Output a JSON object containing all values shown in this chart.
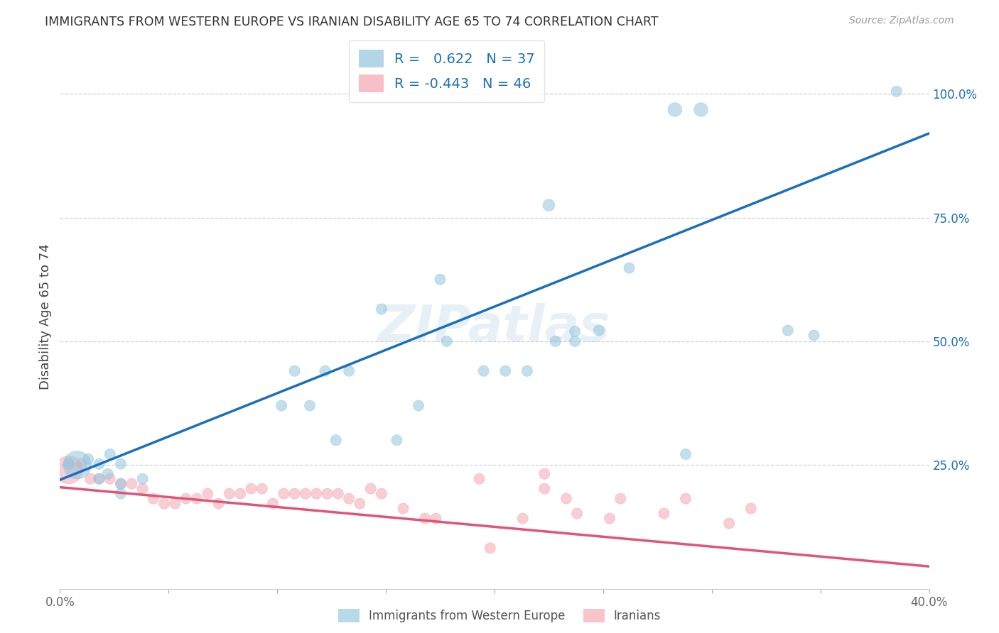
{
  "title": "IMMIGRANTS FROM WESTERN EUROPE VS IRANIAN DISABILITY AGE 65 TO 74 CORRELATION CHART",
  "source": "Source: ZipAtlas.com",
  "ylabel": "Disability Age 65 to 74",
  "xlim": [
    0.0,
    0.4
  ],
  "ylim": [
    0.0,
    1.1
  ],
  "x_ticks": [
    0.0,
    0.05,
    0.1,
    0.15,
    0.2,
    0.25,
    0.3,
    0.35,
    0.4
  ],
  "x_tick_labels": [
    "0.0%",
    "",
    "",
    "",
    "",
    "",
    "",
    "",
    "40.0%"
  ],
  "y_ticks_right": [
    0.0,
    0.25,
    0.5,
    0.75,
    1.0
  ],
  "y_tick_labels_right": [
    "",
    "25.0%",
    "50.0%",
    "75.0%",
    "100.0%"
  ],
  "R_blue": 0.622,
  "N_blue": 37,
  "R_pink": -0.443,
  "N_pink": 46,
  "blue_color": "#92c5de",
  "pink_color": "#f4a5b0",
  "line_blue": "#1a6fbd",
  "line_pink": "#e05577",
  "legend_text_color": "#1a6fbd",
  "blue_line_x": [
    0.0,
    0.4
  ],
  "blue_line_y": [
    0.22,
    0.92
  ],
  "pink_line_x": [
    0.0,
    0.4
  ],
  "pink_line_y": [
    0.205,
    0.045
  ],
  "blue_scatter_x": [
    0.283,
    0.295,
    0.175,
    0.225,
    0.148,
    0.195,
    0.205,
    0.108,
    0.115,
    0.122,
    0.102,
    0.127,
    0.155,
    0.165,
    0.133,
    0.178,
    0.215,
    0.228,
    0.237,
    0.008,
    0.013,
    0.018,
    0.022,
    0.028,
    0.018,
    0.023,
    0.028,
    0.038,
    0.028,
    0.237,
    0.248,
    0.335,
    0.347,
    0.288,
    0.004,
    0.385,
    0.262
  ],
  "blue_scatter_y": [
    0.968,
    0.968,
    0.625,
    0.775,
    0.565,
    0.44,
    0.44,
    0.44,
    0.37,
    0.44,
    0.37,
    0.3,
    0.3,
    0.37,
    0.44,
    0.5,
    0.44,
    0.5,
    0.52,
    0.25,
    0.262,
    0.252,
    0.232,
    0.252,
    0.222,
    0.272,
    0.212,
    0.222,
    0.192,
    0.5,
    0.522,
    0.522,
    0.512,
    0.272,
    0.252,
    1.005,
    0.648
  ],
  "blue_scatter_size": [
    200,
    200,
    120,
    150,
    120,
    120,
    120,
    120,
    120,
    120,
    120,
    120,
    120,
    120,
    120,
    120,
    120,
    120,
    120,
    800,
    120,
    120,
    120,
    120,
    120,
    120,
    120,
    120,
    120,
    120,
    120,
    120,
    120,
    120,
    120,
    120,
    120
  ],
  "pink_scatter_x": [
    0.004,
    0.01,
    0.014,
    0.018,
    0.023,
    0.028,
    0.033,
    0.038,
    0.043,
    0.048,
    0.053,
    0.058,
    0.063,
    0.068,
    0.073,
    0.078,
    0.083,
    0.088,
    0.093,
    0.098,
    0.103,
    0.108,
    0.113,
    0.118,
    0.123,
    0.128,
    0.133,
    0.138,
    0.143,
    0.148,
    0.193,
    0.223,
    0.233,
    0.238,
    0.278,
    0.288,
    0.318,
    0.223,
    0.198,
    0.173,
    0.158,
    0.168,
    0.213,
    0.253,
    0.258,
    0.308
  ],
  "pink_scatter_y": [
    0.24,
    0.252,
    0.222,
    0.222,
    0.222,
    0.212,
    0.212,
    0.202,
    0.182,
    0.172,
    0.172,
    0.182,
    0.182,
    0.192,
    0.172,
    0.192,
    0.192,
    0.202,
    0.202,
    0.172,
    0.192,
    0.192,
    0.192,
    0.192,
    0.192,
    0.192,
    0.182,
    0.172,
    0.202,
    0.192,
    0.222,
    0.202,
    0.182,
    0.152,
    0.152,
    0.182,
    0.162,
    0.232,
    0.082,
    0.142,
    0.162,
    0.142,
    0.142,
    0.142,
    0.182,
    0.132
  ],
  "pink_scatter_size": [
    800,
    120,
    120,
    120,
    120,
    120,
    120,
    120,
    120,
    120,
    120,
    120,
    120,
    120,
    120,
    120,
    120,
    120,
    120,
    120,
    120,
    120,
    120,
    120,
    120,
    120,
    120,
    120,
    120,
    120,
    120,
    120,
    120,
    120,
    120,
    120,
    120,
    120,
    120,
    120,
    120,
    120,
    120,
    120,
    120,
    120
  ],
  "watermark": "ZIPatlas",
  "background_color": "#ffffff",
  "grid_color": "#d0d0d0"
}
